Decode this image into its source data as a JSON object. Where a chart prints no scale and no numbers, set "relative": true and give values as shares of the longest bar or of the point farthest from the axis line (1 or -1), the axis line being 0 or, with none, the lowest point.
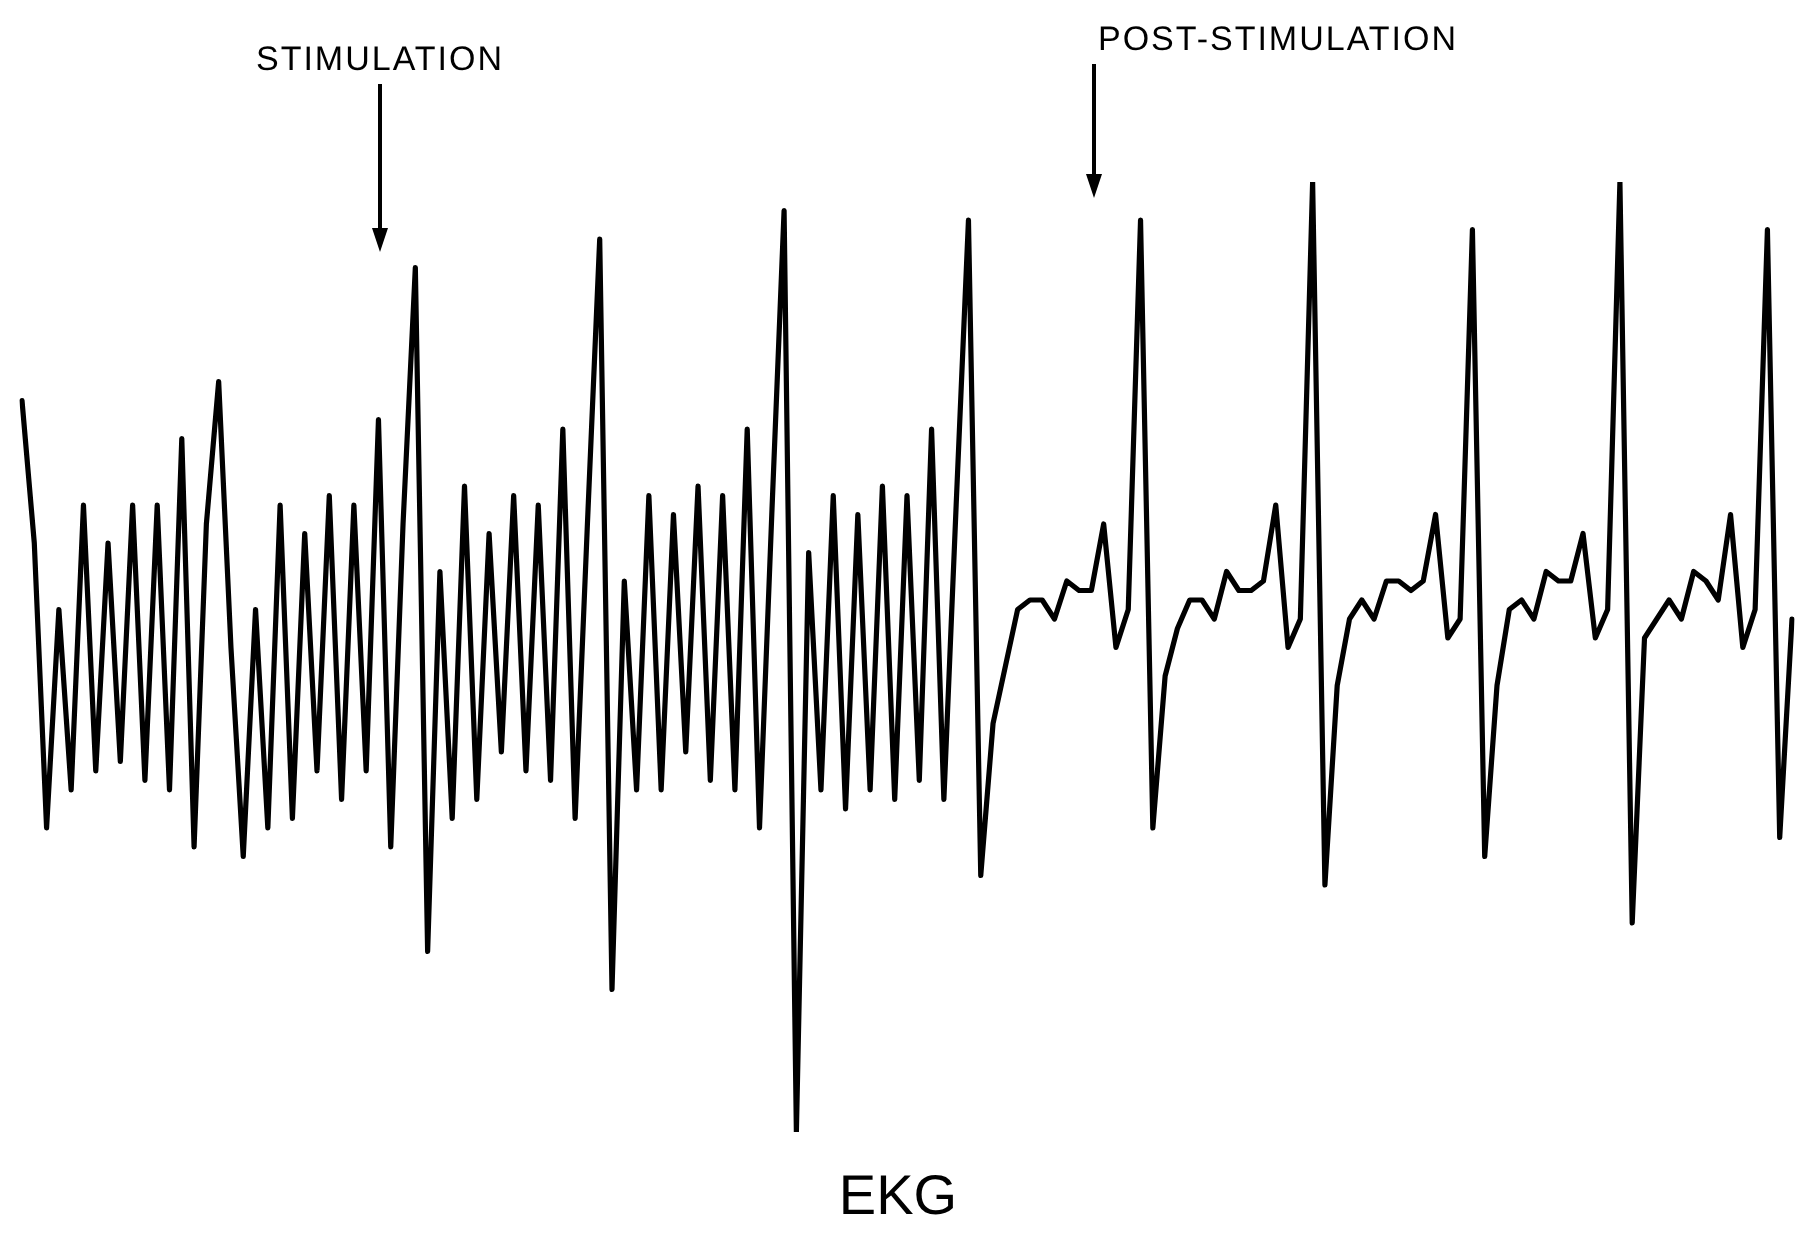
{
  "chart_data": {
    "type": "line",
    "title": "EKG",
    "annotations": [
      "STIMULATION",
      "POST-STIMULATION"
    ],
    "relative": true,
    "color": "#000000",
    "marker": "none",
    "categories": [
      null,
      null,
      null,
      null,
      null,
      null,
      null,
      null,
      null,
      null,
      null,
      null,
      null,
      null,
      null,
      null,
      null,
      null,
      null,
      null,
      null,
      null,
      null,
      null,
      null,
      null,
      null,
      null,
      null,
      null,
      null,
      null,
      null,
      null,
      null,
      null,
      null,
      null,
      null,
      null,
      null,
      null,
      null,
      null,
      null,
      null,
      null,
      null,
      null,
      null,
      null,
      null,
      null,
      null,
      null,
      null,
      null,
      null,
      null,
      null,
      null,
      null,
      null,
      null,
      null,
      null,
      null,
      null,
      null,
      null,
      null,
      null,
      null,
      null,
      null,
      null,
      null,
      null,
      null,
      null,
      null,
      null,
      null,
      null,
      null,
      null,
      null,
      null,
      null,
      null,
      null,
      null,
      null,
      null,
      null,
      null,
      null,
      null,
      null,
      null,
      null,
      null,
      null,
      null,
      null,
      null,
      null,
      null,
      null,
      null,
      null,
      null,
      null,
      null,
      null,
      null,
      null,
      null,
      null,
      null,
      null,
      null,
      null,
      null,
      null,
      null,
      null,
      null,
      null,
      null,
      null,
      null,
      null,
      null,
      null,
      null,
      null,
      null,
      null,
      null,
      null,
      null,
      null,
      null,
      null
    ],
    "values": [
      0.77,
      0.62,
      0.32,
      0.55,
      0.36,
      0.66,
      0.38,
      0.62,
      0.39,
      0.66,
      0.37,
      0.66,
      0.36,
      0.73,
      0.3,
      0.64,
      0.79,
      0.51,
      0.29,
      0.55,
      0.32,
      0.66,
      0.33,
      0.63,
      0.38,
      0.67,
      0.35,
      0.66,
      0.38,
      0.75,
      0.3,
      0.64,
      0.91,
      0.19,
      0.59,
      0.33,
      0.68,
      0.35,
      0.63,
      0.4,
      0.67,
      0.38,
      0.66,
      0.37,
      0.74,
      0.33,
      0.64,
      0.94,
      0.15,
      0.58,
      0.36,
      0.67,
      0.36,
      0.65,
      0.4,
      0.68,
      0.37,
      0.67,
      0.36,
      0.74,
      0.32,
      0.65,
      0.97,
      0,
      0.61,
      0.36,
      0.67,
      0.34,
      0.65,
      0.36,
      0.68,
      0.35,
      0.67,
      0.37,
      0.74,
      0.35,
      0.66,
      0.96,
      0.27,
      0.43,
      0.49,
      0.55,
      0.56,
      0.56,
      0.54,
      0.58,
      0.57,
      0.57,
      0.64,
      0.51,
      0.55,
      0.96,
      0.32,
      0.48,
      0.53,
      0.56,
      0.56,
      0.54,
      0.59,
      0.57,
      0.57,
      0.58,
      0.66,
      0.51,
      0.54,
      1,
      0.26,
      0.47,
      0.54,
      0.56,
      0.54,
      0.58,
      0.58,
      0.57,
      0.58,
      0.65,
      0.52,
      0.54,
      0.95,
      0.29,
      0.47,
      0.55,
      0.56,
      0.54,
      0.59,
      0.58,
      0.58,
      0.63,
      0.52,
      0.55,
      1,
      0.22,
      0.52,
      0.54,
      0.56,
      0.54,
      0.59,
      0.58,
      0.56,
      0.65,
      0.51,
      0.55,
      0.95,
      0.31,
      0.54
    ]
  }
}
